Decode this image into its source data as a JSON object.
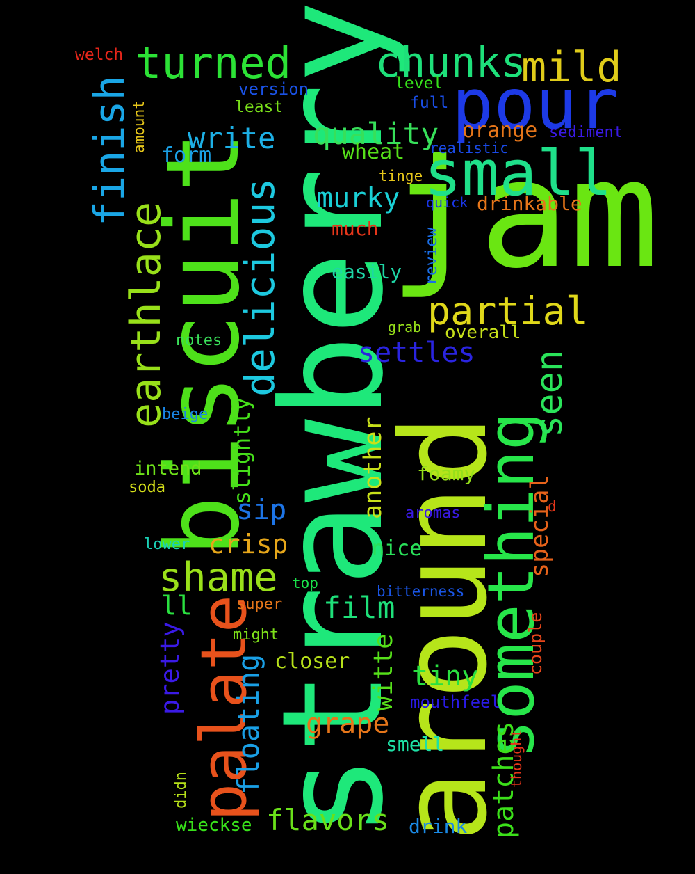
{
  "words": [
    {
      "text": "strawberry",
      "color": "#1ee87a"
    },
    {
      "text": "around",
      "color": "#b6e51a"
    },
    {
      "text": "jam",
      "color": "#6ae612"
    },
    {
      "text": "biscuit",
      "color": "#4ee11a"
    },
    {
      "text": "something",
      "color": "#27e64a"
    },
    {
      "text": "palate",
      "color": "#e8521c"
    },
    {
      "text": "pour",
      "color": "#1d3ae6"
    },
    {
      "text": "small",
      "color": "#1fe08a"
    },
    {
      "text": "earthlace",
      "color": "#98e01a"
    },
    {
      "text": "delicious",
      "color": "#1dc9e0"
    },
    {
      "text": "turned",
      "color": "#2ce236"
    },
    {
      "text": "chunks",
      "color": "#1ee07a"
    },
    {
      "text": "mild",
      "color": "#e0cc1a"
    },
    {
      "text": "finish",
      "color": "#1aa6e6"
    },
    {
      "text": "partial",
      "color": "#e0d81a"
    },
    {
      "text": "seen",
      "color": "#2ae45a"
    },
    {
      "text": "shame",
      "color": "#9ae01a"
    },
    {
      "text": "quality",
      "color": "#37e05a"
    },
    {
      "text": "write",
      "color": "#1db0e6"
    },
    {
      "text": "settles",
      "color": "#2a24e0"
    },
    {
      "text": "murky",
      "color": "#1ad0d6"
    },
    {
      "text": "flavors",
      "color": "#6ae01a"
    },
    {
      "text": "patches",
      "color": "#3ce01a"
    },
    {
      "text": "floating",
      "color": "#1aa0e6"
    },
    {
      "text": "grape",
      "color": "#e6761a"
    },
    {
      "text": "film",
      "color": "#1ee07a"
    },
    {
      "text": "tiny",
      "color": "#2ae040"
    },
    {
      "text": "crisp",
      "color": "#e6a61a"
    },
    {
      "text": "sip",
      "color": "#1d74e6"
    },
    {
      "text": "special",
      "color": "#e6621a"
    },
    {
      "text": "another",
      "color": "#c8e01a"
    },
    {
      "text": "slightly",
      "color": "#46e01a"
    },
    {
      "text": "pretty",
      "color": "#3a1ae6"
    },
    {
      "text": "wheat",
      "color": "#56e01a"
    },
    {
      "text": "form",
      "color": "#1aa0e6"
    },
    {
      "text": "orange",
      "color": "#e6761a"
    },
    {
      "text": "drinkable",
      "color": "#e6761a"
    },
    {
      "text": "closer",
      "color": "#b6e01a"
    },
    {
      "text": "ll",
      "color": "#2ae040"
    },
    {
      "text": "nice",
      "color": "#2ae05a"
    },
    {
      "text": "intend",
      "color": "#6ee01a"
    },
    {
      "text": "foamy",
      "color": "#96e01a"
    },
    {
      "text": "easily",
      "color": "#1ed6a6"
    },
    {
      "text": "much",
      "color": "#e6361a"
    },
    {
      "text": "overall",
      "color": "#c6e01a"
    },
    {
      "text": "smell",
      "color": "#1ee0a6"
    },
    {
      "text": "witte",
      "color": "#56e01a"
    },
    {
      "text": "wieckse",
      "color": "#38e01a"
    },
    {
      "text": "drink",
      "color": "#1a8ae6"
    },
    {
      "text": "mouthfeel",
      "color": "#2a1ae6"
    },
    {
      "text": "review",
      "color": "#1a6ee6"
    },
    {
      "text": "couple",
      "color": "#e6461a"
    },
    {
      "text": "version",
      "color": "#1a52e6"
    },
    {
      "text": "level",
      "color": "#36e01a"
    },
    {
      "text": "least",
      "color": "#7ae01a"
    },
    {
      "text": "full",
      "color": "#1a4ee6"
    },
    {
      "text": "sediment",
      "color": "#3a1ae6"
    },
    {
      "text": "realistic",
      "color": "#1a4ae6"
    },
    {
      "text": "tinge",
      "color": "#e6c61a"
    },
    {
      "text": "quick",
      "color": "#1a36e6"
    },
    {
      "text": "welch",
      "color": "#e6261a"
    },
    {
      "text": "amount",
      "color": "#e6c61a"
    },
    {
      "text": "notes",
      "color": "#3ae05a"
    },
    {
      "text": "grab",
      "color": "#96e01a"
    },
    {
      "text": "beige",
      "color": "#1a86e6"
    },
    {
      "text": "soda",
      "color": "#d6e01a"
    },
    {
      "text": "lower",
      "color": "#1ad0b6"
    },
    {
      "text": "aromas",
      "color": "#3a1ae6"
    },
    {
      "text": "d",
      "color": "#e6361a"
    },
    {
      "text": "top",
      "color": "#1ae04a"
    },
    {
      "text": "bitterness",
      "color": "#1a56e6"
    },
    {
      "text": "super",
      "color": "#e6761a"
    },
    {
      "text": "might",
      "color": "#7ee01a"
    },
    {
      "text": "thought",
      "color": "#e6361a"
    },
    {
      "text": "didn",
      "color": "#b6e01a"
    }
  ]
}
